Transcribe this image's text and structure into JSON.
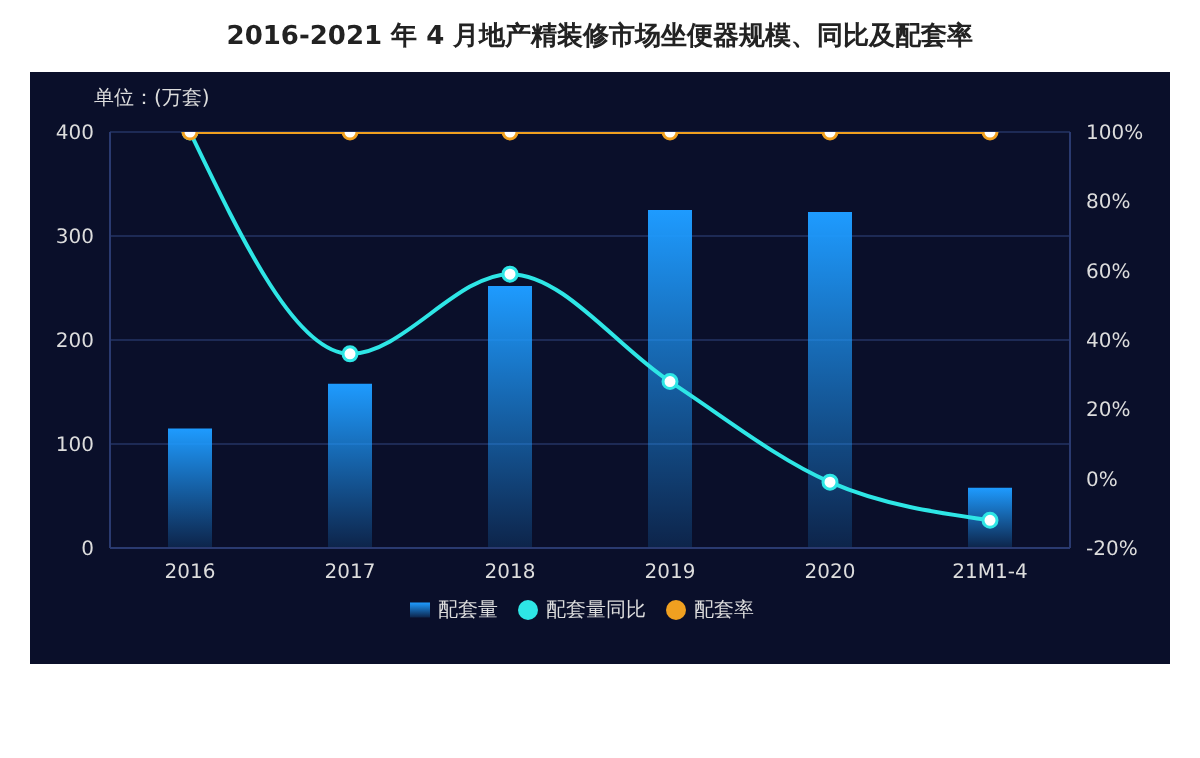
{
  "chart_data": {
    "type": "bar",
    "title": "2016-2021 年 4 月地产精装修市场坐便器规模、同比及配套率",
    "ylabel": "单位：(万套)",
    "categories": [
      "2016",
      "2017",
      "2018",
      "2019",
      "2020",
      "21M1-4"
    ],
    "series": [
      {
        "name": "配套量",
        "color": "#1e9bff",
        "values": [
          115,
          158,
          252,
          325,
          323,
          58
        ]
      },
      {
        "name": "配套量同比",
        "type": "line",
        "axis": "y2",
        "color": "#2ee6e6",
        "values": [
          100,
          36,
          59,
          28,
          -1,
          -12
        ]
      },
      {
        "name": "配套率",
        "type": "line",
        "axis": "y2",
        "color": "#f0a020",
        "values": [
          100,
          100,
          100,
          100,
          100,
          100
        ]
      }
    ],
    "ylim": [
      0,
      400
    ],
    "yticks": [
      0,
      100,
      200,
      300,
      400
    ],
    "y2lim": [
      -20,
      100
    ],
    "y2ticks": [
      {
        "value": -20,
        "label": "-20%"
      },
      {
        "value": 0,
        "label": "0%"
      },
      {
        "value": 20,
        "label": "20%"
      },
      {
        "value": 40,
        "label": "40%"
      },
      {
        "value": 60,
        "label": "60%"
      },
      {
        "value": 80,
        "label": "80%"
      },
      {
        "value": 100,
        "label": "100%"
      }
    ],
    "grid": "y",
    "legend": "bottom",
    "marker": "circle"
  }
}
